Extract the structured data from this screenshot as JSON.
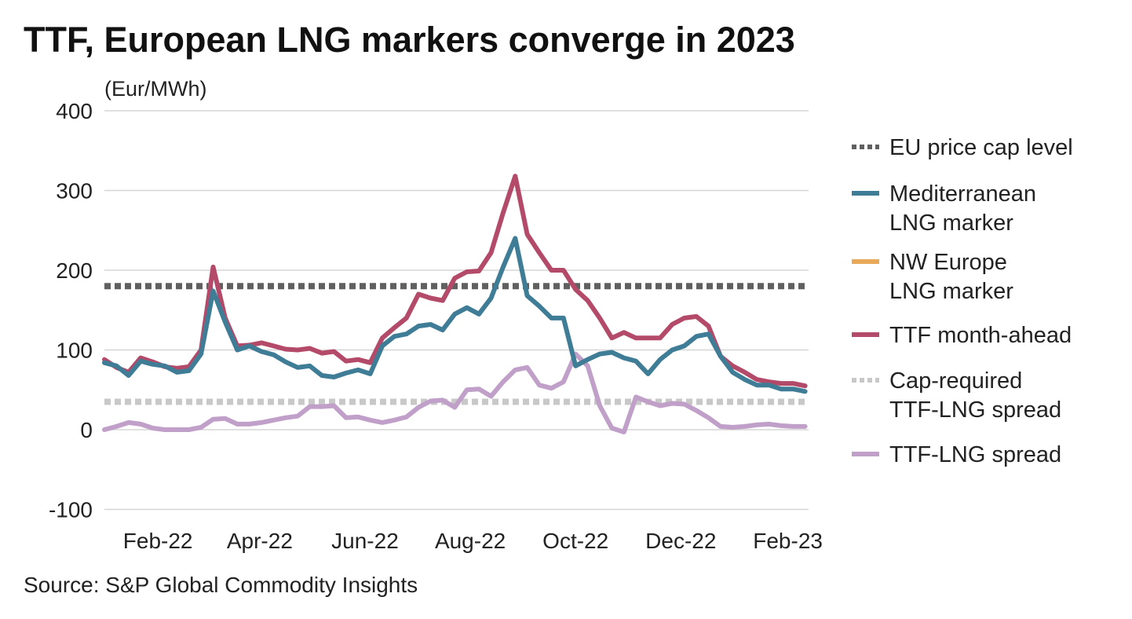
{
  "chart_data": {
    "type": "line",
    "title": "TTF, European LNG markers converge in 2023",
    "ylabel": "(Eur/MWh)",
    "source": "Source: S&P Global Commodity Insights",
    "ylim": [
      -100,
      400
    ],
    "yticks": [
      -100,
      0,
      100,
      200,
      300,
      400
    ],
    "xlim": [
      "2022-01-01",
      "2023-02-13"
    ],
    "xticks": [
      {
        "label": "Feb-22",
        "date": "2022-02-01"
      },
      {
        "label": "Apr-22",
        "date": "2022-04-01"
      },
      {
        "label": "Jun-22",
        "date": "2022-06-01"
      },
      {
        "label": "Aug-22",
        "date": "2022-08-01"
      },
      {
        "label": "Oct-22",
        "date": "2022-10-01"
      },
      {
        "label": "Dec-22",
        "date": "2022-12-01"
      },
      {
        "label": "Feb-23",
        "date": "2023-02-01"
      }
    ],
    "grid": "horizontal",
    "legend_position": "right",
    "x": [
      "2022-01-01",
      "2022-01-08",
      "2022-01-15",
      "2022-01-22",
      "2022-01-29",
      "2022-02-05",
      "2022-02-12",
      "2022-02-19",
      "2022-02-26",
      "2022-03-05",
      "2022-03-12",
      "2022-03-19",
      "2022-03-26",
      "2022-04-02",
      "2022-04-09",
      "2022-04-16",
      "2022-04-23",
      "2022-04-30",
      "2022-05-07",
      "2022-05-14",
      "2022-05-21",
      "2022-05-28",
      "2022-06-04",
      "2022-06-11",
      "2022-06-18",
      "2022-06-25",
      "2022-07-02",
      "2022-07-09",
      "2022-07-16",
      "2022-07-23",
      "2022-07-30",
      "2022-08-06",
      "2022-08-13",
      "2022-08-20",
      "2022-08-27",
      "2022-09-03",
      "2022-09-10",
      "2022-09-17",
      "2022-09-24",
      "2022-10-01",
      "2022-10-08",
      "2022-10-15",
      "2022-10-22",
      "2022-10-29",
      "2022-11-05",
      "2022-11-12",
      "2022-11-19",
      "2022-11-26",
      "2022-12-03",
      "2022-12-10",
      "2022-12-17",
      "2022-12-24",
      "2022-12-31",
      "2023-01-07",
      "2023-01-14",
      "2023-01-21",
      "2023-01-28",
      "2023-02-04",
      "2023-02-11"
    ],
    "series": [
      {
        "name": "EU price cap level",
        "style": "dotted",
        "color": "#606060",
        "constant": 180
      },
      {
        "name": "Mediterranean LNG marker",
        "style": "solid",
        "color": "#3F7D96",
        "values": [
          84,
          80,
          68,
          86,
          82,
          80,
          72,
          74,
          95,
          174,
          135,
          100,
          105,
          98,
          94,
          85,
          78,
          80,
          68,
          66,
          71,
          75,
          70,
          105,
          117,
          120,
          130,
          132,
          125,
          145,
          153,
          145,
          165,
          204,
          240,
          168,
          155,
          140,
          140,
          80,
          88,
          95,
          97,
          90,
          86,
          70,
          88,
          100,
          105,
          117,
          120,
          92,
          72,
          63,
          56,
          56,
          51,
          51,
          48
        ]
      },
      {
        "name": "NW Europe LNG marker",
        "style": "solid",
        "color": "#E8A95B",
        "values": [
          84,
          80,
          68,
          86,
          82,
          80,
          72,
          74,
          95,
          174,
          135,
          100,
          105,
          98,
          94,
          85,
          78,
          80,
          68,
          66,
          71,
          75,
          70,
          105,
          117,
          120,
          130,
          132,
          125,
          145,
          153,
          145,
          165,
          204,
          240,
          168,
          155,
          140,
          140,
          80,
          88,
          95,
          97,
          90,
          86,
          70,
          88,
          100,
          105,
          117,
          120,
          92,
          72,
          63,
          56,
          56,
          51,
          51,
          48
        ]
      },
      {
        "name": "TTF month-ahead",
        "style": "solid",
        "color": "#B44A6A",
        "values": [
          88,
          78,
          72,
          90,
          85,
          79,
          77,
          79,
          100,
          204,
          140,
          105,
          106,
          109,
          105,
          101,
          100,
          102,
          96,
          98,
          86,
          88,
          84,
          115,
          128,
          140,
          170,
          165,
          162,
          190,
          198,
          199,
          222,
          272,
          318,
          245,
          222,
          200,
          200,
          176,
          162,
          140,
          115,
          122,
          115,
          115,
          115,
          132,
          140,
          142,
          130,
          92,
          80,
          72,
          63,
          60,
          58,
          58,
          55
        ]
      },
      {
        "name": "Cap-required TTF-LNG spread",
        "style": "dotted",
        "color": "#C8C8C8",
        "constant": 35
      },
      {
        "name": "TTF-LNG spread",
        "style": "solid",
        "color": "#C0A0C8",
        "values": [
          0,
          4,
          9,
          7,
          2,
          0,
          0,
          0,
          3,
          13,
          14,
          7,
          7,
          9,
          12,
          15,
          17,
          29,
          29,
          30,
          15,
          16,
          12,
          9,
          12,
          16,
          28,
          36,
          37,
          28,
          50,
          51,
          42,
          60,
          75,
          78,
          56,
          52,
          60,
          95,
          80,
          30,
          2,
          -3,
          41,
          35,
          30,
          33,
          32,
          24,
          15,
          4,
          3,
          4,
          6,
          7,
          5,
          4,
          4
        ]
      }
    ],
    "legend": [
      {
        "lines": [
          "EU price cap level"
        ]
      },
      {
        "lines": [
          "Mediterranean",
          "LNG marker"
        ]
      },
      {
        "lines": [
          "NW Europe",
          "LNG marker"
        ]
      },
      {
        "lines": [
          "TTF month-ahead"
        ]
      },
      {
        "lines": [
          "Cap-required",
          "TTF-LNG spread"
        ]
      },
      {
        "lines": [
          "TTF-LNG spread"
        ]
      }
    ]
  }
}
